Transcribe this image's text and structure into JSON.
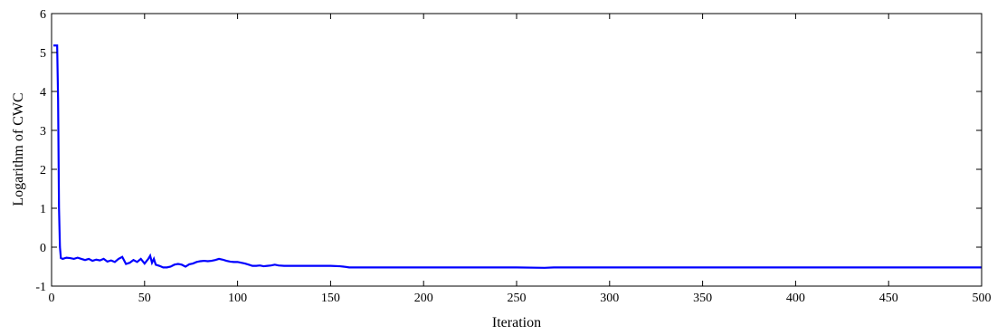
{
  "chart_data": {
    "type": "line",
    "title": "",
    "xlabel": "Iteration",
    "ylabel": "Logarithm of CWC",
    "xlim": [
      0,
      500
    ],
    "ylim": [
      -1,
      6
    ],
    "xticks": [
      0,
      50,
      100,
      150,
      200,
      250,
      300,
      350,
      400,
      450,
      500
    ],
    "yticks": [
      -1,
      0,
      1,
      2,
      3,
      4,
      5,
      6
    ],
    "xtick_labels": [
      "0",
      "50",
      "100",
      "150",
      "200",
      "250",
      "300",
      "350",
      "400",
      "450",
      "500"
    ],
    "ytick_labels": [
      "-1",
      "0",
      "1",
      "2",
      "3",
      "4",
      "5",
      "6"
    ],
    "grid": false,
    "legend": "none",
    "series": [
      {
        "color": "#0000ff",
        "x": [
          1,
          2,
          3,
          3.5,
          4,
          4.5,
          5,
          6,
          8,
          10,
          12,
          14,
          16,
          18,
          20,
          22,
          24,
          26,
          28,
          30,
          32,
          34,
          36,
          38,
          40,
          42,
          44,
          46,
          48,
          50,
          52,
          53,
          54,
          55,
          56,
          58,
          60,
          62,
          64,
          66,
          68,
          70,
          72,
          74,
          76,
          78,
          80,
          82,
          84,
          86,
          88,
          90,
          92,
          94,
          96,
          98,
          100,
          102,
          104,
          106,
          108,
          110,
          112,
          114,
          116,
          118,
          120,
          122,
          125,
          130,
          140,
          150,
          155,
          157,
          160,
          200,
          250,
          265,
          270,
          300,
          350,
          400,
          450,
          500
        ],
        "y": [
          5.18,
          5.18,
          5.18,
          3.8,
          1.0,
          0.0,
          -0.28,
          -0.3,
          -0.27,
          -0.28,
          -0.3,
          -0.27,
          -0.3,
          -0.33,
          -0.3,
          -0.35,
          -0.32,
          -0.34,
          -0.3,
          -0.37,
          -0.34,
          -0.38,
          -0.3,
          -0.25,
          -0.43,
          -0.4,
          -0.33,
          -0.38,
          -0.3,
          -0.42,
          -0.3,
          -0.22,
          -0.4,
          -0.3,
          -0.45,
          -0.48,
          -0.52,
          -0.52,
          -0.5,
          -0.45,
          -0.43,
          -0.45,
          -0.5,
          -0.44,
          -0.42,
          -0.38,
          -0.36,
          -0.35,
          -0.36,
          -0.35,
          -0.33,
          -0.3,
          -0.32,
          -0.35,
          -0.37,
          -0.38,
          -0.38,
          -0.4,
          -0.42,
          -0.45,
          -0.48,
          -0.48,
          -0.47,
          -0.49,
          -0.48,
          -0.47,
          -0.45,
          -0.47,
          -0.48,
          -0.48,
          -0.48,
          -0.48,
          -0.49,
          -0.5,
          -0.52,
          -0.52,
          -0.52,
          -0.53,
          -0.52,
          -0.52,
          -0.52,
          -0.52,
          -0.52,
          -0.52
        ]
      }
    ]
  }
}
